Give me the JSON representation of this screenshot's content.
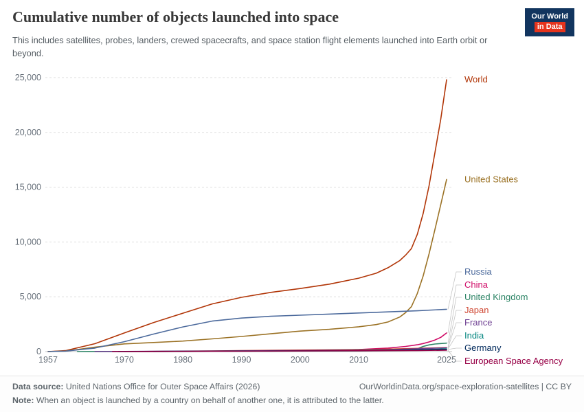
{
  "header": {
    "title": "Cumulative number of objects launched into space",
    "subtitle": "This includes satellites, probes, landers, crewed spacecrafts, and space station flight elements launched into Earth orbit or beyond.",
    "logo": {
      "line1": "Our World",
      "line2": "in Data"
    }
  },
  "footer": {
    "data_source_label": "Data source:",
    "data_source": "United Nations Office for Outer Space Affairs (2026)",
    "url": "OurWorldinData.org/space-exploration-satellites | CC BY",
    "note_label": "Note:",
    "note": "When an object is launched by a country on behalf of another one, it is attributed to the latter."
  },
  "chart_data": {
    "type": "line",
    "title": "Cumulative number of objects launched into space",
    "xlabel": "",
    "ylabel": "",
    "x_range": [
      1957,
      2025
    ],
    "y_range": [
      0,
      25000
    ],
    "x_ticks": [
      1957,
      1970,
      1980,
      1990,
      2000,
      2010,
      2025
    ],
    "y_ticks": [
      0,
      5000,
      10000,
      15000,
      20000,
      25000
    ],
    "y_tick_labels": [
      "0",
      "5,000",
      "10,000",
      "15,000",
      "20,000",
      "25,000"
    ],
    "grid": "horizontal-dashed",
    "legend_position": "right-end-labels",
    "series": [
      {
        "name": "World",
        "color": "#b13507",
        "points": [
          [
            1957,
            3
          ],
          [
            1960,
            90
          ],
          [
            1965,
            720
          ],
          [
            1970,
            1700
          ],
          [
            1975,
            2650
          ],
          [
            1980,
            3500
          ],
          [
            1985,
            4350
          ],
          [
            1990,
            4950
          ],
          [
            1995,
            5400
          ],
          [
            2000,
            5750
          ],
          [
            2005,
            6150
          ],
          [
            2010,
            6700
          ],
          [
            2013,
            7150
          ],
          [
            2015,
            7650
          ],
          [
            2017,
            8300
          ],
          [
            2018,
            8800
          ],
          [
            2019,
            9400
          ],
          [
            2020,
            10700
          ],
          [
            2021,
            12600
          ],
          [
            2022,
            15100
          ],
          [
            2023,
            18100
          ],
          [
            2024,
            21200
          ],
          [
            2025,
            24800
          ]
        ]
      },
      {
        "name": "United States",
        "color": "#9b7225",
        "points": [
          [
            1957,
            1
          ],
          [
            1960,
            45
          ],
          [
            1965,
            400
          ],
          [
            1970,
            700
          ],
          [
            1975,
            830
          ],
          [
            1980,
            960
          ],
          [
            1985,
            1160
          ],
          [
            1990,
            1380
          ],
          [
            1995,
            1620
          ],
          [
            2000,
            1870
          ],
          [
            2005,
            2030
          ],
          [
            2010,
            2260
          ],
          [
            2013,
            2460
          ],
          [
            2015,
            2700
          ],
          [
            2017,
            3150
          ],
          [
            2018,
            3550
          ],
          [
            2019,
            4100
          ],
          [
            2020,
            5300
          ],
          [
            2021,
            6900
          ],
          [
            2022,
            8900
          ],
          [
            2023,
            11100
          ],
          [
            2024,
            13400
          ],
          [
            2025,
            15700
          ]
        ]
      },
      {
        "name": "Russia",
        "color": "#4c6a9c",
        "points": [
          [
            1957,
            2
          ],
          [
            1960,
            45
          ],
          [
            1965,
            320
          ],
          [
            1970,
            900
          ],
          [
            1975,
            1600
          ],
          [
            1980,
            2250
          ],
          [
            1985,
            2780
          ],
          [
            1990,
            3060
          ],
          [
            1995,
            3220
          ],
          [
            2000,
            3320
          ],
          [
            2005,
            3420
          ],
          [
            2010,
            3520
          ],
          [
            2015,
            3620
          ],
          [
            2020,
            3720
          ],
          [
            2025,
            3860
          ]
        ]
      },
      {
        "name": "China",
        "color": "#cf0a66",
        "points": [
          [
            1970,
            1
          ],
          [
            1975,
            5
          ],
          [
            1980,
            12
          ],
          [
            1985,
            20
          ],
          [
            1990,
            35
          ],
          [
            1995,
            55
          ],
          [
            2000,
            80
          ],
          [
            2005,
            115
          ],
          [
            2010,
            180
          ],
          [
            2015,
            320
          ],
          [
            2018,
            470
          ],
          [
            2020,
            620
          ],
          [
            2021,
            730
          ],
          [
            2022,
            880
          ],
          [
            2023,
            1050
          ],
          [
            2024,
            1300
          ],
          [
            2025,
            1700
          ]
        ]
      },
      {
        "name": "United Kingdom",
        "color": "#2c8465",
        "points": [
          [
            1962,
            1
          ],
          [
            1970,
            6
          ],
          [
            1980,
            16
          ],
          [
            1990,
            28
          ],
          [
            2000,
            42
          ],
          [
            2010,
            58
          ],
          [
            2015,
            80
          ],
          [
            2019,
            115
          ],
          [
            2020,
            260
          ],
          [
            2021,
            470
          ],
          [
            2022,
            610
          ],
          [
            2023,
            690
          ],
          [
            2024,
            730
          ],
          [
            2025,
            770
          ]
        ]
      },
      {
        "name": "Japan",
        "color": "#cf4631",
        "points": [
          [
            1970,
            2
          ],
          [
            1975,
            18
          ],
          [
            1980,
            42
          ],
          [
            1985,
            62
          ],
          [
            1990,
            85
          ],
          [
            1995,
            110
          ],
          [
            2000,
            135
          ],
          [
            2005,
            160
          ],
          [
            2010,
            185
          ],
          [
            2015,
            225
          ],
          [
            2020,
            295
          ],
          [
            2025,
            365
          ]
        ]
      },
      {
        "name": "France",
        "color": "#6d3e91",
        "points": [
          [
            1965,
            1
          ],
          [
            1970,
            10
          ],
          [
            1975,
            26
          ],
          [
            1980,
            38
          ],
          [
            1985,
            52
          ],
          [
            1990,
            66
          ],
          [
            1995,
            82
          ],
          [
            2000,
            96
          ],
          [
            2005,
            112
          ],
          [
            2010,
            130
          ],
          [
            2015,
            165
          ],
          [
            2020,
            255
          ],
          [
            2025,
            345
          ]
        ]
      },
      {
        "name": "India",
        "color": "#00847e",
        "points": [
          [
            1975,
            1
          ],
          [
            1980,
            6
          ],
          [
            1985,
            16
          ],
          [
            1990,
            26
          ],
          [
            1995,
            36
          ],
          [
            2000,
            48
          ],
          [
            2005,
            62
          ],
          [
            2010,
            82
          ],
          [
            2015,
            115
          ],
          [
            2020,
            165
          ],
          [
            2025,
            245
          ]
        ]
      },
      {
        "name": "Germany",
        "color": "#00295b",
        "points": [
          [
            1969,
            1
          ],
          [
            1975,
            10
          ],
          [
            1980,
            22
          ],
          [
            1985,
            32
          ],
          [
            1990,
            44
          ],
          [
            1995,
            56
          ],
          [
            2000,
            72
          ],
          [
            2005,
            82
          ],
          [
            2010,
            94
          ],
          [
            2015,
            110
          ],
          [
            2020,
            145
          ],
          [
            2025,
            195
          ]
        ]
      },
      {
        "name": "European Space Agency",
        "color": "#970046",
        "points": [
          [
            1968,
            1
          ],
          [
            1975,
            8
          ],
          [
            1980,
            16
          ],
          [
            1985,
            24
          ],
          [
            1990,
            32
          ],
          [
            1995,
            44
          ],
          [
            2000,
            56
          ],
          [
            2005,
            66
          ],
          [
            2010,
            78
          ],
          [
            2015,
            88
          ],
          [
            2020,
            102
          ],
          [
            2025,
            125
          ]
        ]
      }
    ]
  }
}
